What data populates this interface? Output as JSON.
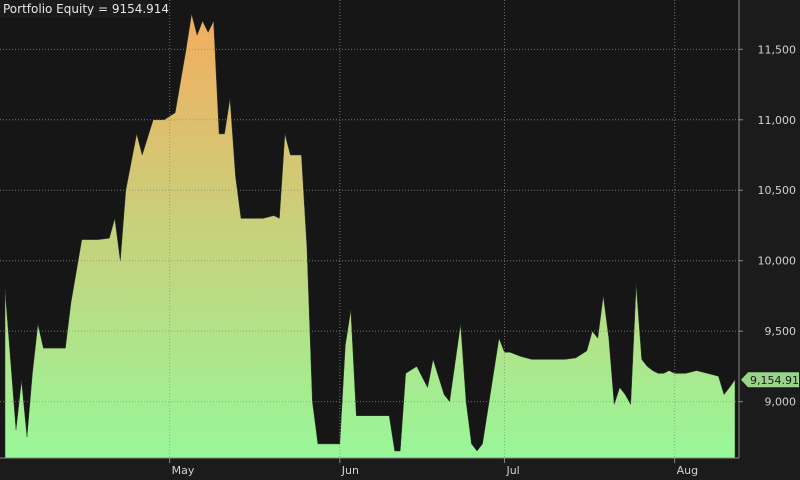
{
  "header": {
    "label": "Portfolio Equity",
    "separator": " = ",
    "value": "9154.914"
  },
  "last_value_badge": "9,154.91",
  "colors": {
    "background": "#1b1b1b",
    "plot_background": "#161616",
    "fill_top": "#f4ad5f",
    "fill_bottom": "#98f799",
    "badge": "#9ad48a"
  },
  "chart_data": {
    "type": "area",
    "title": "",
    "xlabel": "",
    "ylabel": "",
    "ylim": [
      8600,
      11850
    ],
    "y_ticks": [
      9000,
      9500,
      10000,
      10500,
      11000,
      11500
    ],
    "y_tick_labels": [
      "9,000",
      "9,500",
      "10,000",
      "10,500",
      "11,000",
      "11,500"
    ],
    "x_ticks": [
      {
        "label": "May",
        "date": "2019-05-01"
      },
      {
        "label": "Jun",
        "date": "2019-06-01"
      },
      {
        "label": "Jul",
        "date": "2019-07-01"
      },
      {
        "label": "Aug",
        "date": "2019-08-01"
      }
    ],
    "grid": true,
    "series": [
      {
        "points": [
          [
            "2019-04-01",
            9800
          ],
          [
            "2019-04-02",
            9300
          ],
          [
            "2019-04-03",
            8800
          ],
          [
            "2019-04-04",
            9150
          ],
          [
            "2019-04-05",
            8750
          ],
          [
            "2019-04-06",
            9200
          ],
          [
            "2019-04-07",
            9550
          ],
          [
            "2019-04-08",
            9380
          ],
          [
            "2019-04-10",
            9380
          ],
          [
            "2019-04-12",
            9380
          ],
          [
            "2019-04-13",
            9700
          ],
          [
            "2019-04-15",
            10150
          ],
          [
            "2019-04-18",
            10150
          ],
          [
            "2019-04-20",
            10160
          ],
          [
            "2019-04-21",
            10300
          ],
          [
            "2019-04-22",
            10000
          ],
          [
            "2019-04-23",
            10500
          ],
          [
            "2019-04-25",
            10900
          ],
          [
            "2019-04-26",
            10750
          ],
          [
            "2019-04-28",
            11000
          ],
          [
            "2019-04-30",
            11000
          ],
          [
            "2019-05-02",
            11050
          ],
          [
            "2019-05-04",
            11500
          ],
          [
            "2019-05-05",
            11750
          ],
          [
            "2019-05-06",
            11600
          ],
          [
            "2019-05-07",
            11700
          ],
          [
            "2019-05-08",
            11620
          ],
          [
            "2019-05-09",
            11700
          ],
          [
            "2019-05-10",
            10900
          ],
          [
            "2019-05-11",
            10900
          ],
          [
            "2019-05-12",
            11150
          ],
          [
            "2019-05-13",
            10600
          ],
          [
            "2019-05-14",
            10300
          ],
          [
            "2019-05-16",
            10300
          ],
          [
            "2019-05-18",
            10300
          ],
          [
            "2019-05-20",
            10320
          ],
          [
            "2019-05-21",
            10300
          ],
          [
            "2019-05-22",
            10900
          ],
          [
            "2019-05-23",
            10750
          ],
          [
            "2019-05-25",
            10750
          ],
          [
            "2019-05-26",
            10100
          ],
          [
            "2019-05-27",
            9000
          ],
          [
            "2019-05-28",
            8700
          ],
          [
            "2019-05-30",
            8700
          ],
          [
            "2019-06-01",
            8700
          ],
          [
            "2019-06-02",
            9400
          ],
          [
            "2019-06-03",
            9650
          ],
          [
            "2019-06-04",
            8900
          ],
          [
            "2019-06-06",
            8900
          ],
          [
            "2019-06-08",
            8900
          ],
          [
            "2019-06-10",
            8900
          ],
          [
            "2019-06-11",
            8650
          ],
          [
            "2019-06-12",
            8650
          ],
          [
            "2019-06-13",
            9200
          ],
          [
            "2019-06-15",
            9250
          ],
          [
            "2019-06-17",
            9100
          ],
          [
            "2019-06-18",
            9300
          ],
          [
            "2019-06-20",
            9050
          ],
          [
            "2019-06-21",
            9000
          ],
          [
            "2019-06-23",
            9550
          ],
          [
            "2019-06-24",
            9000
          ],
          [
            "2019-06-25",
            8700
          ],
          [
            "2019-06-26",
            8650
          ],
          [
            "2019-06-27",
            8700
          ],
          [
            "2019-06-28",
            8950
          ],
          [
            "2019-06-30",
            9450
          ],
          [
            "2019-07-01",
            9350
          ],
          [
            "2019-07-02",
            9350
          ],
          [
            "2019-07-04",
            9320
          ],
          [
            "2019-07-06",
            9300
          ],
          [
            "2019-07-08",
            9300
          ],
          [
            "2019-07-10",
            9300
          ],
          [
            "2019-07-12",
            9300
          ],
          [
            "2019-07-14",
            9310
          ],
          [
            "2019-07-16",
            9360
          ],
          [
            "2019-07-17",
            9500
          ],
          [
            "2019-07-18",
            9450
          ],
          [
            "2019-07-19",
            9750
          ],
          [
            "2019-07-20",
            9450
          ],
          [
            "2019-07-21",
            8980
          ],
          [
            "2019-07-22",
            9100
          ],
          [
            "2019-07-23",
            9050
          ],
          [
            "2019-07-24",
            8980
          ],
          [
            "2019-07-25",
            9830
          ],
          [
            "2019-07-26",
            9300
          ],
          [
            "2019-07-27",
            9250
          ],
          [
            "2019-07-28",
            9220
          ],
          [
            "2019-07-29",
            9200
          ],
          [
            "2019-07-30",
            9200
          ],
          [
            "2019-07-31",
            9220
          ],
          [
            "2019-08-01",
            9200
          ],
          [
            "2019-08-03",
            9200
          ],
          [
            "2019-08-05",
            9220
          ],
          [
            "2019-08-07",
            9200
          ],
          [
            "2019-08-09",
            9180
          ],
          [
            "2019-08-10",
            9050
          ],
          [
            "2019-08-11",
            9100
          ],
          [
            "2019-08-12",
            9154.914
          ]
        ]
      }
    ]
  }
}
